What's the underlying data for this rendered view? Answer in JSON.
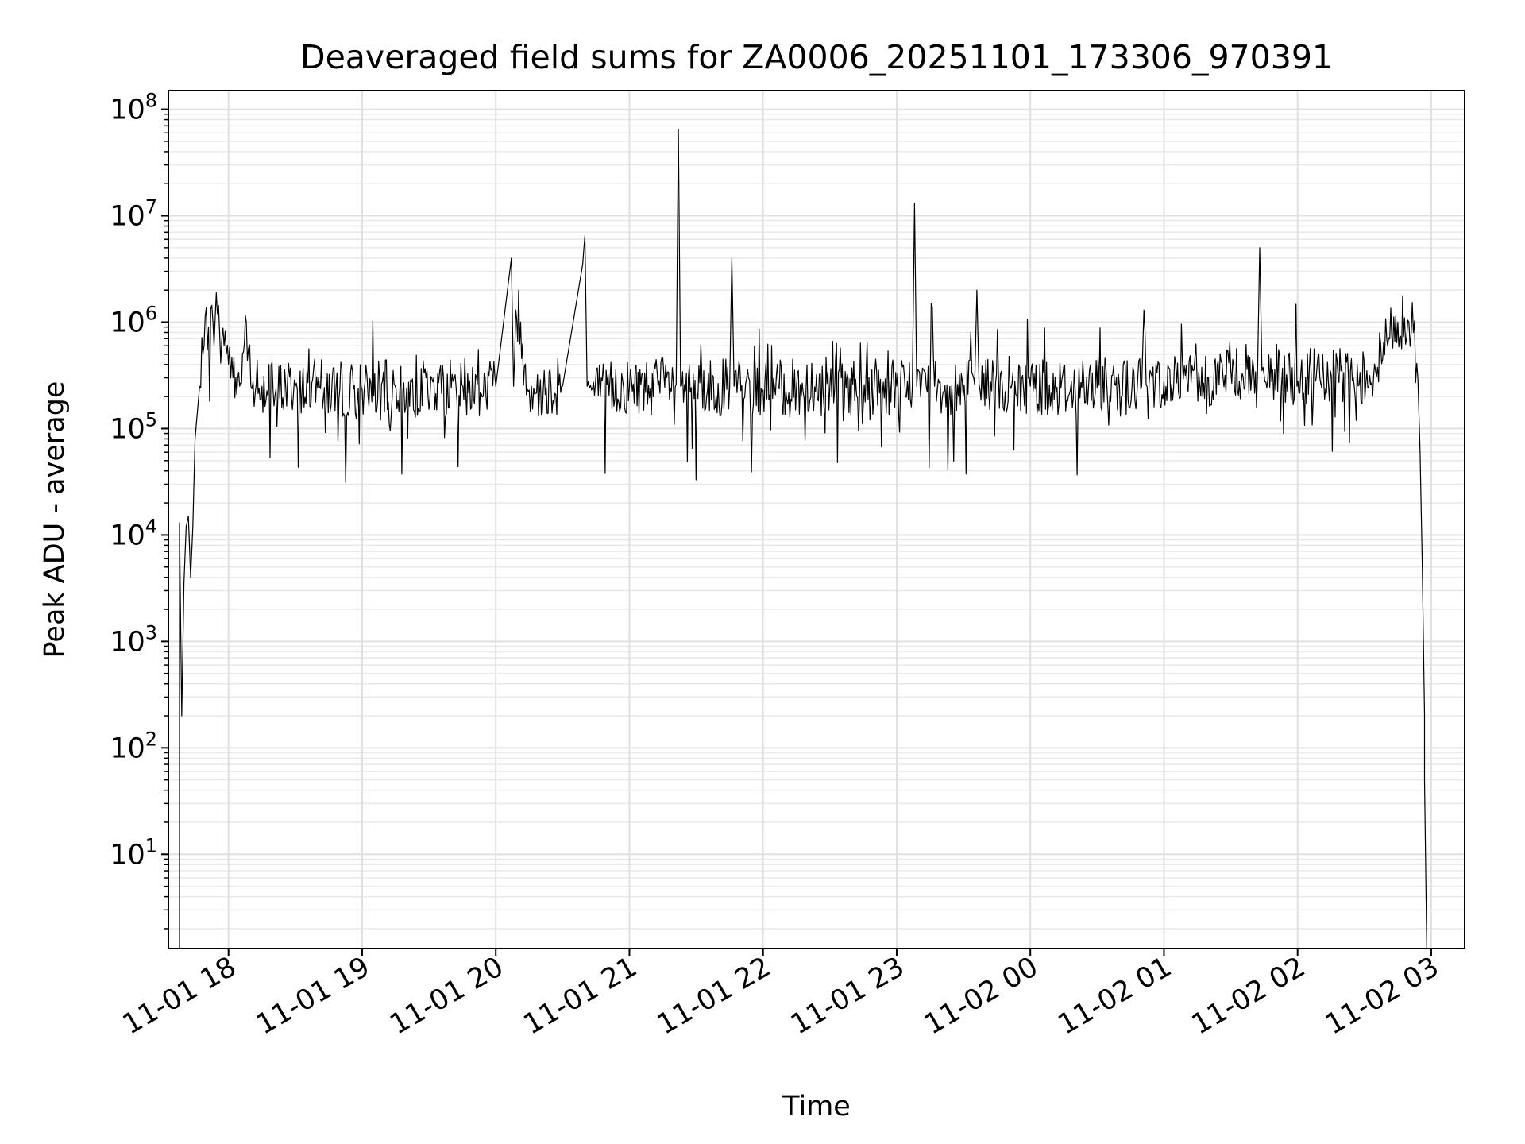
{
  "chart_data": {
    "type": "line",
    "title": "Deaveraged field sums for ZA0006_20251101_173306_970391",
    "xlabel": "Time",
    "ylabel": "Peak ADU - average",
    "yscale": "log",
    "ylim": [
      1.3,
      150000000
    ],
    "xlim": [
      "2025-11-01 17:33",
      "2025-11-02 03:15"
    ],
    "grid": true,
    "x_ticks": [
      "11-01 18",
      "11-01 19",
      "11-01 20",
      "11-01 21",
      "11-01 22",
      "11-01 23",
      "11-02 00",
      "11-02 01",
      "11-02 02",
      "11-02 03"
    ],
    "y_ticks": [
      {
        "base": "10",
        "exp": "1"
      },
      {
        "base": "10",
        "exp": "2"
      },
      {
        "base": "10",
        "exp": "3"
      },
      {
        "base": "10",
        "exp": "4"
      },
      {
        "base": "10",
        "exp": "5"
      },
      {
        "base": "10",
        "exp": "6"
      },
      {
        "base": "10",
        "exp": "7"
      },
      {
        "base": "10",
        "exp": "8"
      }
    ],
    "line_color": "#000000",
    "series": [
      {
        "x": [
          "2025-11-01 17:38",
          "2025-11-01 17:38",
          "2025-11-01 17:39",
          "2025-11-01 17:40",
          "2025-11-01 17:41",
          "2025-11-01 17:42",
          "2025-11-01 17:43",
          "2025-11-01 17:44",
          "2025-11-01 17:45",
          "2025-11-01 17:47",
          "2025-11-01 17:49",
          "2025-11-01 17:51",
          "2025-11-01 17:53",
          "2025-11-01 17:55",
          "2025-11-01 17:56",
          "2025-11-01 17:57",
          "2025-11-01 17:58",
          "2025-11-01 17:59",
          "2025-11-01 18:00",
          "2025-11-01 18:02",
          "2025-11-01 18:05",
          "2025-11-01 18:08",
          "2025-11-01 18:10",
          "2025-11-01 18:12",
          "2025-11-01 18:15",
          "2025-11-01 18:20",
          "2025-11-01 18:30",
          "2025-11-01 18:40",
          "2025-11-01 19:00",
          "2025-11-01 19:20",
          "2025-11-01 19:40",
          "2025-11-01 20:00",
          "2025-11-01 20:07",
          "2025-11-01 20:08",
          "2025-11-01 20:09",
          "2025-11-01 20:15",
          "2025-11-01 20:16",
          "2025-11-01 20:17",
          "2025-11-01 20:30",
          "2025-11-01 20:39",
          "2025-11-01 20:40",
          "2025-11-01 20:41",
          "2025-11-01 20:42",
          "2025-11-01 20:43",
          "2025-11-01 21:00",
          "2025-11-01 21:21",
          "2025-11-01 21:22",
          "2025-11-01 21:23",
          "2025-11-01 21:45",
          "2025-11-01 21:46",
          "2025-11-01 21:47",
          "2025-11-01 22:00",
          "2025-11-01 22:30",
          "2025-11-01 23:00",
          "2025-11-01 23:07",
          "2025-11-01 23:08",
          "2025-11-01 23:09",
          "2025-11-01 23:15",
          "2025-11-01 23:16",
          "2025-11-01 23:17",
          "2025-11-01 23:35",
          "2025-11-01 23:36",
          "2025-11-01 23:37",
          "2025-11-02 00:00",
          "2025-11-02 00:30",
          "2025-11-02 00:50",
          "2025-11-02 00:51",
          "2025-11-02 00:52",
          "2025-11-02 01:00",
          "2025-11-02 01:20",
          "2025-11-02 01:30",
          "2025-11-02 01:42",
          "2025-11-02 01:43",
          "2025-11-02 01:44",
          "2025-11-02 01:55",
          "2025-11-02 02:10",
          "2025-11-02 02:25",
          "2025-11-02 02:35",
          "2025-11-02 02:40",
          "2025-11-02 02:45",
          "2025-11-02 02:48",
          "2025-11-02 02:50",
          "2025-11-02 02:52",
          "2025-11-02 02:54",
          "2025-11-02 02:55",
          "2025-11-02 02:56",
          "2025-11-02 02:57",
          "2025-11-02 02:57",
          "2025-11-02 02:58"
        ],
        "y": [
          1.3,
          13000,
          200,
          3500,
          12000,
          15000,
          4000,
          12000,
          80000,
          250000,
          600000,
          900000,
          1000000,
          1200000,
          800000,
          700000,
          600000,
          500000,
          400000,
          300000,
          250000,
          1000000,
          250000,
          220000,
          250000,
          230000,
          250000,
          240000,
          230000,
          240000,
          240000,
          250000,
          4000000,
          250000,
          1300000,
          230000,
          250000,
          240000,
          250000,
          3500000,
          6500000,
          250000,
          240000,
          230000,
          250000,
          260000,
          65000000,
          250000,
          240000,
          4000000,
          250000,
          230000,
          250000,
          250000,
          240000,
          13000000,
          250000,
          240000,
          1400000,
          250000,
          260000,
          2000000,
          260000,
          250000,
          240000,
          250000,
          1300000,
          260000,
          280000,
          300000,
          350000,
          320000,
          5000000,
          350000,
          320000,
          300000,
          300000,
          350000,
          700000,
          1000000,
          1100000,
          1000000,
          800000,
          300000,
          60000,
          5000,
          200,
          50,
          1.3
        ]
      }
    ]
  }
}
